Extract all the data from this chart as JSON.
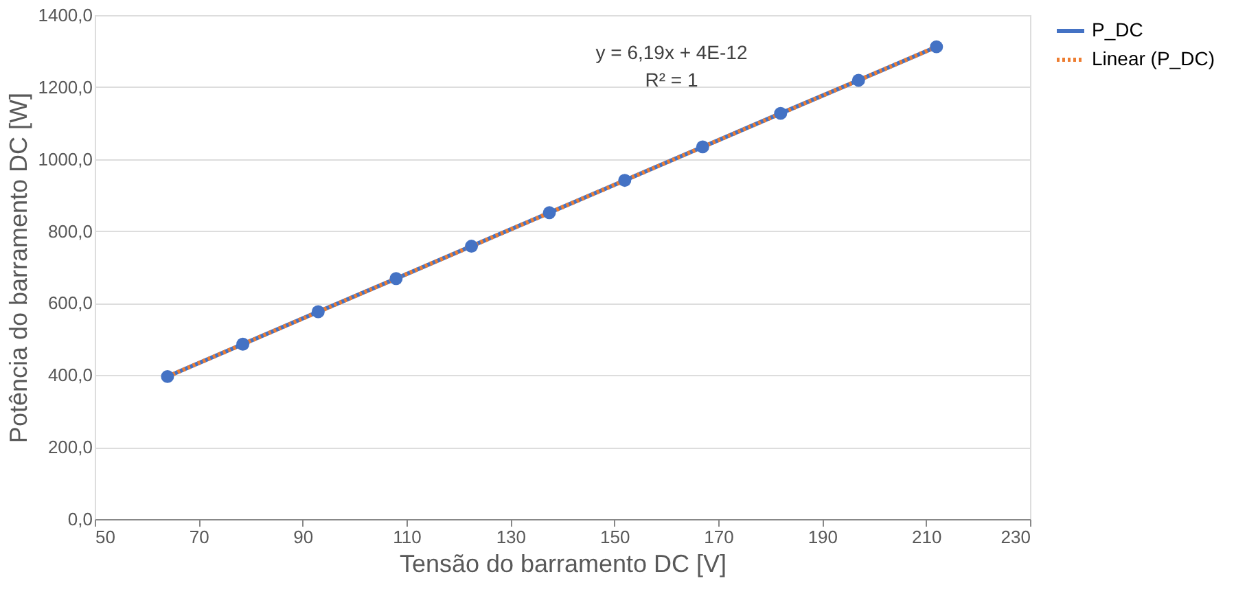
{
  "chart_data": {
    "type": "line",
    "xlabel": "Tensão do barramento  DC [V]",
    "ylabel": "Potência do barramento  DC [W]",
    "x": [
      64,
      78.5,
      93,
      108,
      122.5,
      137.5,
      152,
      167,
      182,
      197,
      212
    ],
    "series": [
      {
        "name": "P_DC",
        "color": "#4472c4",
        "marker": "circle",
        "line_style": "solid",
        "values": [
          396,
          486,
          576,
          668,
          758,
          851,
          941,
          1034,
          1127,
          1219,
          1312
        ]
      },
      {
        "name": "Linear (P_DC)",
        "type": "line",
        "color": "#ed7d31",
        "line_style": "dotted",
        "marker": "none",
        "x": [
          64,
          212
        ],
        "values": [
          396,
          1312
        ]
      }
    ],
    "xlim": [
      50,
      230
    ],
    "xticks": [
      50,
      70,
      90,
      110,
      130,
      150,
      170,
      190,
      210,
      230
    ],
    "ylim": [
      0,
      1400
    ],
    "yticks": [
      {
        "value": 0,
        "label": "0,0"
      },
      {
        "value": 200,
        "label": "200,0"
      },
      {
        "value": 400,
        "label": "400,0"
      },
      {
        "value": 600,
        "label": "600,0"
      },
      {
        "value": 800,
        "label": "800,0"
      },
      {
        "value": 1000,
        "label": "1000,0"
      },
      {
        "value": 1200,
        "label": "1200,0"
      },
      {
        "value": 1400,
        "label": "1400,0"
      }
    ],
    "grid": "y",
    "legend": "right",
    "annotations": [
      "y = 6,19x + 4E-12",
      "R² = 1"
    ]
  }
}
